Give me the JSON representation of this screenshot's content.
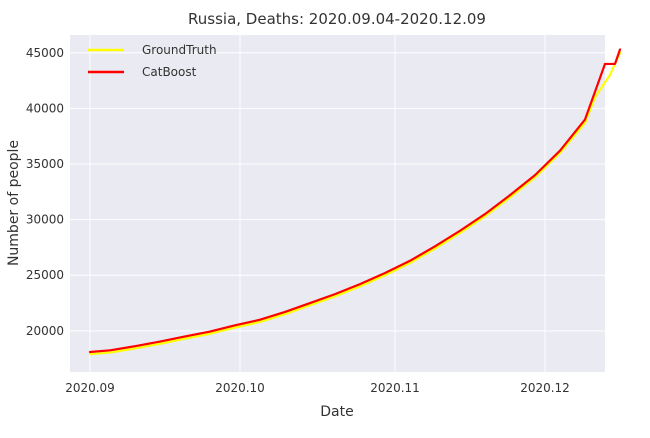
{
  "chart_data": {
    "type": "line",
    "title": "Russia, Deaths: 2020.09.04-2020.12.09",
    "xlabel": "Date",
    "ylabel": "Number of people",
    "x_ticks": [
      {
        "date": "2020-09-01",
        "label": "2020.09"
      },
      {
        "date": "2020-10-01",
        "label": "2020.10"
      },
      {
        "date": "2020-11-01",
        "label": "2020.11"
      },
      {
        "date": "2020-12-01",
        "label": "2020.12"
      }
    ],
    "y_ticks": [
      20000,
      25000,
      30000,
      35000,
      40000,
      45000
    ],
    "xlim": [
      "2020-08-28",
      "2020-12-13"
    ],
    "ylim": [
      16300,
      46600
    ],
    "grid": true,
    "legend_position": "top-left",
    "colors": {
      "background": "#EAEAF2",
      "grid": "#FFFFFF",
      "ground_truth": "#FFFF00",
      "catboost": "#FF0000"
    },
    "series": [
      {
        "name": "GroundTruth",
        "color": "#FFFF00",
        "points": [
          [
            "2020-09-01",
            17900
          ],
          [
            "2020-09-05",
            18050
          ],
          [
            "2020-09-10",
            18420
          ],
          [
            "2020-09-15",
            18840
          ],
          [
            "2020-09-20",
            19300
          ],
          [
            "2020-09-25",
            19740
          ],
          [
            "2020-09-30",
            20300
          ],
          [
            "2020-10-05",
            20800
          ],
          [
            "2020-10-10",
            21500
          ],
          [
            "2020-10-15",
            22300
          ],
          [
            "2020-10-20",
            23100
          ],
          [
            "2020-10-25",
            24000
          ],
          [
            "2020-10-30",
            25000
          ],
          [
            "2020-11-04",
            26100
          ],
          [
            "2020-11-09",
            27400
          ],
          [
            "2020-11-14",
            28800
          ],
          [
            "2020-11-19",
            30300
          ],
          [
            "2020-11-24",
            32000
          ],
          [
            "2020-11-29",
            33800
          ],
          [
            "2020-12-04",
            36000
          ],
          [
            "2020-12-09",
            38700
          ],
          [
            "2020-12-11",
            41000
          ],
          [
            "2020-12-14",
            43000
          ],
          [
            "2020-12-16",
            45000
          ]
        ]
      },
      {
        "name": "CatBoost",
        "color": "#FF0000",
        "points": [
          [
            "2020-09-01",
            18100
          ],
          [
            "2020-09-05",
            18250
          ],
          [
            "2020-09-10",
            18620
          ],
          [
            "2020-09-15",
            19040
          ],
          [
            "2020-09-20",
            19500
          ],
          [
            "2020-09-25",
            19940
          ],
          [
            "2020-09-30",
            20500
          ],
          [
            "2020-10-05",
            21000
          ],
          [
            "2020-10-10",
            21700
          ],
          [
            "2020-10-15",
            22500
          ],
          [
            "2020-10-20",
            23300
          ],
          [
            "2020-10-25",
            24200
          ],
          [
            "2020-10-30",
            25200
          ],
          [
            "2020-11-04",
            26300
          ],
          [
            "2020-11-09",
            27600
          ],
          [
            "2020-11-14",
            29000
          ],
          [
            "2020-11-19",
            30500
          ],
          [
            "2020-11-24",
            32200
          ],
          [
            "2020-11-29",
            34000
          ],
          [
            "2020-12-04",
            36200
          ],
          [
            "2020-12-09",
            39000
          ],
          [
            "2020-12-11",
            41500
          ],
          [
            "2020-12-13",
            44000
          ],
          [
            "2020-12-15",
            44000
          ],
          [
            "2020-12-16",
            45300
          ]
        ]
      }
    ]
  }
}
